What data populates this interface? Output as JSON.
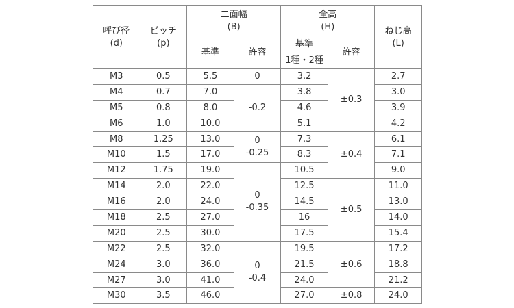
{
  "headers": {
    "nominal": {
      "label": "呼び径",
      "sub": "(d)"
    },
    "pitch": {
      "label": "ピッチ",
      "sub": "(p)"
    },
    "width_across_flats": {
      "label": "二面幅",
      "sub": "(B)",
      "standard": "基準",
      "tolerance": "許容"
    },
    "height": {
      "label": "全高",
      "sub": "(H)",
      "standard": "基準",
      "standard_sub": "1種・2種",
      "tolerance": "許容"
    },
    "thread_height": {
      "label": "ねじ高",
      "sub": "(L)"
    }
  },
  "rows": [
    {
      "d": "M3",
      "p": "0.5",
      "b": "5.5",
      "h": "3.2",
      "l": "2.7"
    },
    {
      "d": "M4",
      "p": "0.7",
      "b": "7.0",
      "h": "3.8",
      "l": "3.0"
    },
    {
      "d": "M5",
      "p": "0.8",
      "b": "8.0",
      "h": "4.6",
      "l": "3.9"
    },
    {
      "d": "M6",
      "p": "1.0",
      "b": "10.0",
      "h": "5.1",
      "l": "4.2"
    },
    {
      "d": "M8",
      "p": "1.25",
      "b": "13.0",
      "h": "7.3",
      "l": "6.1"
    },
    {
      "d": "M10",
      "p": "1.5",
      "b": "17.0",
      "h": "8.3",
      "l": "7.1"
    },
    {
      "d": "M12",
      "p": "1.75",
      "b": "19.0",
      "h": "10.5",
      "l": "9.0"
    },
    {
      "d": "M14",
      "p": "2.0",
      "b": "22.0",
      "h": "12.5",
      "l": "11.0"
    },
    {
      "d": "M16",
      "p": "2.0",
      "b": "24.0",
      "h": "14.5",
      "l": "13.0"
    },
    {
      "d": "M18",
      "p": "2.5",
      "b": "27.0",
      "h": "16",
      "l": "14.0"
    },
    {
      "d": "M20",
      "p": "2.5",
      "b": "30.0",
      "h": "17.5",
      "l": "15.4"
    },
    {
      "d": "M22",
      "p": "2.5",
      "b": "32.0",
      "h": "19.5",
      "l": "17.2"
    },
    {
      "d": "M24",
      "p": "3.0",
      "b": "36.0",
      "h": "21.5",
      "l": "18.8"
    },
    {
      "d": "M27",
      "p": "3.0",
      "b": "41.0",
      "h": "24.0",
      "l": "21.2"
    },
    {
      "d": "M30",
      "p": "3.5",
      "b": "46.0",
      "h": "27.0",
      "l": "24.0"
    }
  ],
  "b_tolerance": [
    {
      "upper": "0",
      "lower": ""
    },
    {
      "upper": "",
      "lower": "-0.2"
    },
    {
      "upper": "0",
      "lower": "-0.25"
    },
    {
      "upper": "0",
      "lower": "-0.35"
    },
    {
      "upper": "0",
      "lower": "-0.4"
    }
  ],
  "h_tolerance": [
    "±0.3",
    "±0.4",
    "±0.5",
    "±0.6",
    "±0.8"
  ]
}
